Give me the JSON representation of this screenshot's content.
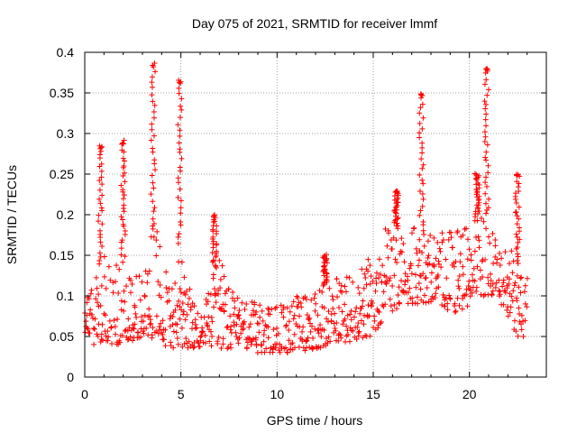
{
  "chart_data": {
    "type": "scatter",
    "title": "Day 075 of 2021, SRMTID for receiver lmmf",
    "xlabel": "GPS time / hours",
    "ylabel": "SRMTID / TECUs",
    "xlim": [
      0,
      24
    ],
    "ylim": [
      0,
      0.4
    ],
    "xticks": [
      0,
      5,
      10,
      15,
      20
    ],
    "xtick_labels": [
      "0",
      "5",
      "10",
      "15",
      "20"
    ],
    "yticks": [
      0,
      0.05,
      0.1,
      0.15,
      0.2,
      0.25,
      0.3,
      0.35,
      0.4
    ],
    "ytick_labels": [
      "0",
      "0.05",
      "0.1",
      "0.15",
      "0.2",
      "0.25",
      "0.3",
      "0.35",
      "0.4"
    ],
    "grid": true,
    "marker": "plus",
    "marker_color": "#ff0000",
    "x_start": 0,
    "x_step": 0.0625,
    "samples_per_hour": 16,
    "hour_range": [
      0,
      23
    ],
    "envelope": {
      "x": [
        0,
        0.5,
        1,
        1.5,
        2,
        2.5,
        3,
        3.5,
        4,
        4.5,
        5,
        5.5,
        6,
        6.5,
        7,
        7.5,
        8,
        9,
        10,
        11,
        12,
        13,
        14,
        15,
        15.5,
        16,
        16.5,
        17,
        17.5,
        18,
        18.5,
        19,
        19.5,
        20,
        20.5,
        21,
        21.5,
        22,
        22.5,
        23
      ],
      "low": [
        0.055,
        0.04,
        0.04,
        0.04,
        0.04,
        0.045,
        0.05,
        0.045,
        0.04,
        0.035,
        0.035,
        0.035,
        0.035,
        0.035,
        0.035,
        0.035,
        0.035,
        0.03,
        0.03,
        0.03,
        0.035,
        0.04,
        0.045,
        0.05,
        0.07,
        0.08,
        0.09,
        0.09,
        0.09,
        0.09,
        0.09,
        0.08,
        0.08,
        0.09,
        0.1,
        0.1,
        0.1,
        0.07,
        0.05,
        0.05
      ],
      "high": [
        0.095,
        0.12,
        0.15,
        0.14,
        0.16,
        0.13,
        0.13,
        0.19,
        0.17,
        0.1,
        0.17,
        0.1,
        0.1,
        0.11,
        0.16,
        0.11,
        0.1,
        0.09,
        0.09,
        0.1,
        0.11,
        0.12,
        0.13,
        0.15,
        0.18,
        0.19,
        0.18,
        0.19,
        0.18,
        0.19,
        0.18,
        0.18,
        0.18,
        0.19,
        0.2,
        0.21,
        0.2,
        0.18,
        0.14,
        0.13
      ]
    },
    "spikes": [
      {
        "x": 0.8,
        "peak": 0.285
      },
      {
        "x": 2.0,
        "peak": 0.29
      },
      {
        "x": 3.55,
        "peak": 0.385
      },
      {
        "x": 4.95,
        "peak": 0.365
      },
      {
        "x": 6.75,
        "peak": 0.2
      },
      {
        "x": 12.5,
        "peak": 0.15
      },
      {
        "x": 16.2,
        "peak": 0.23
      },
      {
        "x": 17.5,
        "peak": 0.35
      },
      {
        "x": 20.4,
        "peak": 0.25
      },
      {
        "x": 20.9,
        "peak": 0.38
      },
      {
        "x": 22.5,
        "peak": 0.25
      }
    ]
  }
}
